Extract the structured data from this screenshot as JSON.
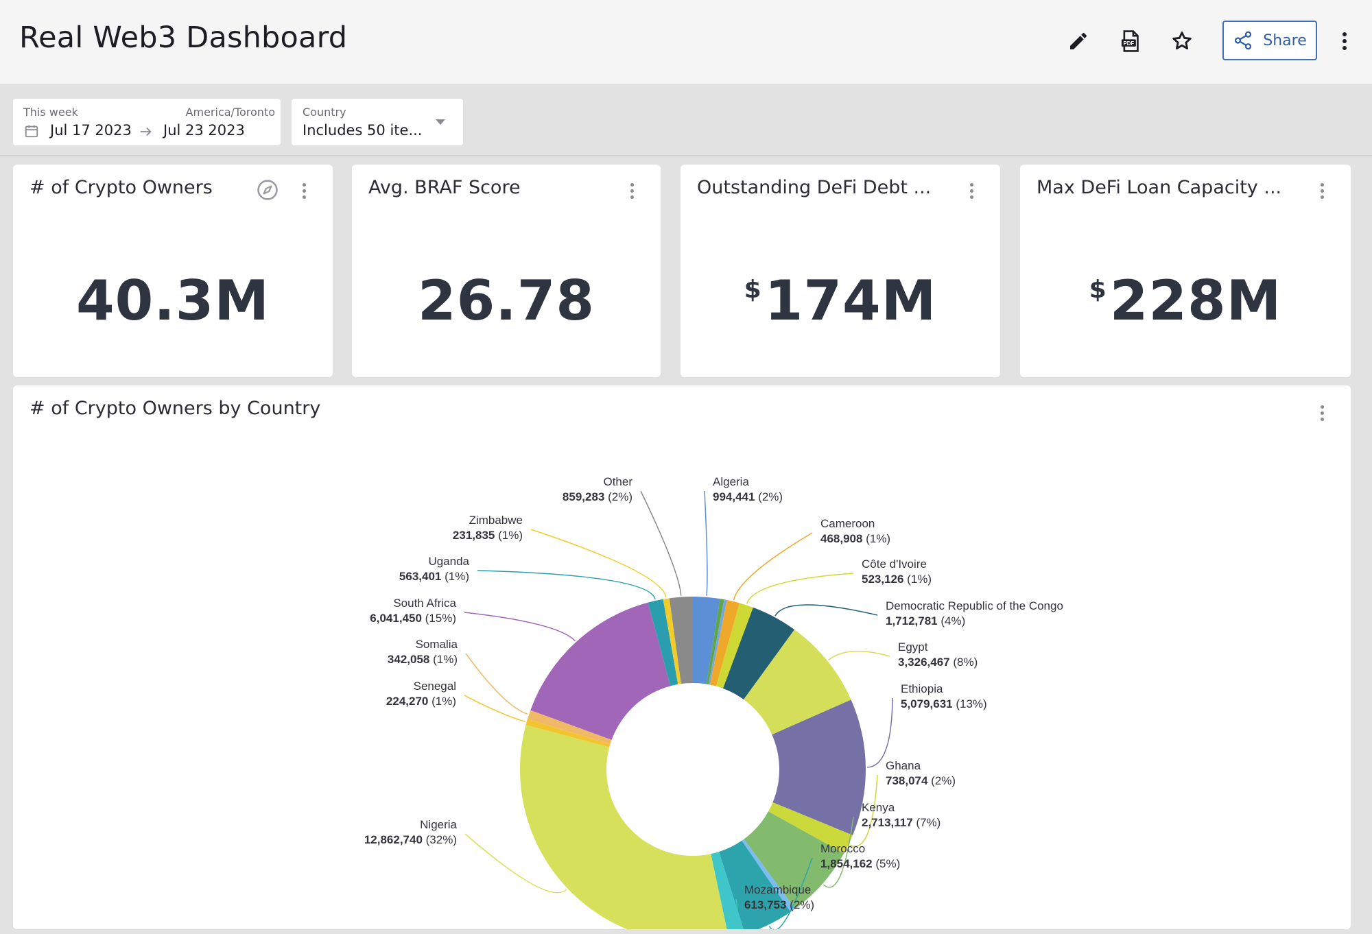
{
  "header": {
    "title": "Real Web3 Dashboard",
    "share_label": "Share"
  },
  "icons": {
    "edit": "pencil-icon",
    "pdf": "pdf-icon",
    "favorite": "star-icon",
    "share": "share-icon",
    "more": "more-vertical-icon"
  },
  "filters": {
    "date": {
      "label": "This week",
      "timezone": "America/Toronto",
      "start": "Jul 17 2023",
      "end": "Jul 23 2023"
    },
    "country": {
      "label": "Country",
      "value": "Includes 50 ite..."
    }
  },
  "kpis": [
    {
      "title": "# of Crypto Owners",
      "prefix": "",
      "value": "40.3M"
    },
    {
      "title": "Avg. BRAF Score",
      "prefix": "",
      "value": "26.78"
    },
    {
      "title": "Outstanding DeFi Debt ...",
      "prefix": "$",
      "value": "174M"
    },
    {
      "title": "Max DeFi Loan Capacity ...",
      "prefix": "$",
      "value": "228M"
    }
  ],
  "chart_card": {
    "title": "# of Crypto Owners by Country"
  },
  "chart_data": {
    "type": "pie",
    "title": "# of Crypto Owners by Country",
    "donut": true,
    "slices": [
      {
        "name": "Algeria",
        "value": 994441,
        "value_label": "994,441",
        "pct_label": "(2%)",
        "color": "#5b8fd6"
      },
      {
        "name": "",
        "value": 150000,
        "value_label": "",
        "pct_label": "",
        "color": "#5ea648"
      },
      {
        "name": "",
        "value": 110000,
        "value_label": "",
        "pct_label": "",
        "color": "#7aa6e0"
      },
      {
        "name": "Cameroon",
        "value": 468908,
        "value_label": "468,908",
        "pct_label": "(1%)",
        "color": "#efa92a"
      },
      {
        "name": "Côte d'Ivoire",
        "value": 523126,
        "value_label": "523,126",
        "pct_label": "(1%)",
        "color": "#cfd936"
      },
      {
        "name": "Democratic Republic of the Congo",
        "value": 1712781,
        "value_label": "1,712,781",
        "pct_label": "(4%)",
        "color": "#245e73"
      },
      {
        "name": "Egypt",
        "value": 3326467,
        "value_label": "3,326,467",
        "pct_label": "(8%)",
        "color": "#d4de58"
      },
      {
        "name": "Ethiopia",
        "value": 5079631,
        "value_label": "5,079,631",
        "pct_label": "(13%)",
        "color": "#7570a6"
      },
      {
        "name": "Ghana",
        "value": 738074,
        "value_label": "738,074",
        "pct_label": "(2%)",
        "color": "#ccd93a"
      },
      {
        "name": "Kenya",
        "value": 2713117,
        "value_label": "2,713,117",
        "pct_label": "(7%)",
        "color": "#82bb6e"
      },
      {
        "name": "",
        "value": 200000,
        "value_label": "",
        "pct_label": "",
        "color": "#7dbcf0"
      },
      {
        "name": "Morocco",
        "value": 1854162,
        "value_label": "1,854,162",
        "pct_label": "(5%)",
        "color": "#2da4ac"
      },
      {
        "name": "Mozambique",
        "value": 613753,
        "value_label": "613,753",
        "pct_label": "(2%)",
        "color": "#3ec6c8"
      },
      {
        "name": "Nigeria",
        "value": 12862740,
        "value_label": "12,862,740",
        "pct_label": "(32%)",
        "color": "#d6e05a"
      },
      {
        "name": "Senegal",
        "value": 224270,
        "value_label": "224,270",
        "pct_label": "(1%)",
        "color": "#f4c430"
      },
      {
        "name": "Somalia",
        "value": 342058,
        "value_label": "342,058",
        "pct_label": "(1%)",
        "color": "#f0b968"
      },
      {
        "name": "South Africa",
        "value": 6041450,
        "value_label": "6,041,450",
        "pct_label": "(15%)",
        "color": "#a266b8"
      },
      {
        "name": "Uganda",
        "value": 563401,
        "value_label": "563,401",
        "pct_label": "(1%)",
        "color": "#2a9eae"
      },
      {
        "name": "Zimbabwe",
        "value": 231835,
        "value_label": "231,835",
        "pct_label": "(1%)",
        "color": "#f2cc2a"
      },
      {
        "name": "Other",
        "value": 859283,
        "value_label": "859,283",
        "pct_label": "(2%)",
        "color": "#8a8a8a"
      }
    ]
  }
}
